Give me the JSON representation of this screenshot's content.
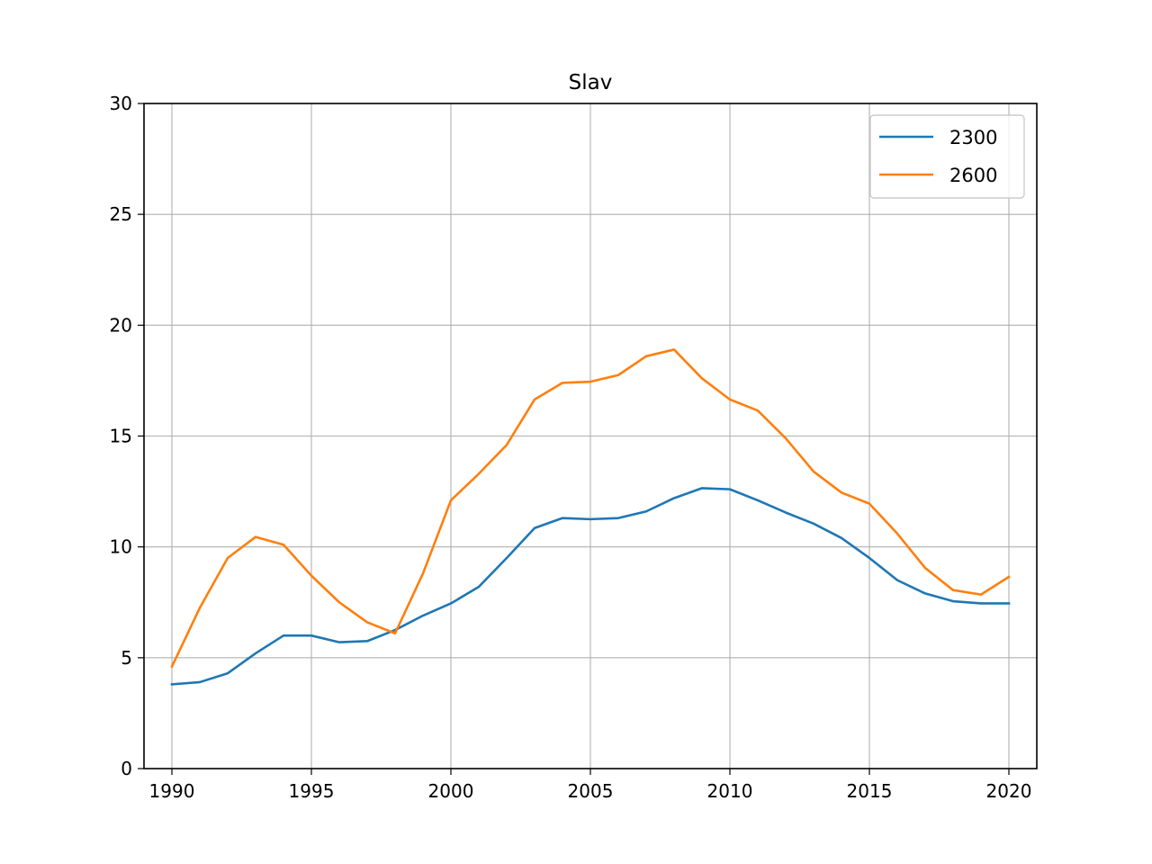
{
  "chart_data": {
    "type": "line",
    "title": "Slav",
    "xlabel": "",
    "ylabel": "",
    "xlim": [
      1989,
      2021
    ],
    "ylim": [
      0,
      30
    ],
    "xticks": [
      1990,
      1995,
      2000,
      2005,
      2010,
      2015,
      2020
    ],
    "yticks": [
      0,
      5,
      10,
      15,
      20,
      25,
      30
    ],
    "grid": true,
    "legend_position": "top-right",
    "x": [
      1990,
      1991,
      1992,
      1993,
      1994,
      1995,
      1996,
      1997,
      1998,
      1999,
      2000,
      2001,
      2002,
      2003,
      2004,
      2005,
      2006,
      2007,
      2008,
      2009,
      2010,
      2011,
      2012,
      2013,
      2014,
      2015,
      2016,
      2017,
      2018,
      2019,
      2020
    ],
    "series": [
      {
        "name": "2300",
        "color": "#1f77b4",
        "values": [
          3.8,
          3.9,
          4.3,
          5.2,
          6.0,
          6.0,
          5.7,
          5.75,
          6.25,
          6.9,
          7.45,
          8.2,
          9.5,
          10.85,
          11.3,
          11.25,
          11.3,
          11.6,
          12.2,
          12.65,
          12.6,
          12.1,
          11.55,
          11.05,
          10.4,
          9.5,
          8.5,
          7.9,
          7.55,
          7.45,
          7.45
        ]
      },
      {
        "name": "2600",
        "color": "#ff7f0e",
        "values": [
          4.6,
          7.25,
          9.5,
          10.45,
          10.1,
          8.7,
          7.5,
          6.6,
          6.1,
          8.8,
          12.1,
          13.3,
          14.6,
          16.65,
          17.4,
          17.45,
          17.75,
          18.6,
          18.9,
          17.6,
          16.65,
          16.15,
          14.9,
          13.4,
          12.45,
          11.95,
          10.6,
          9.05,
          8.05,
          7.85,
          8.65
        ]
      }
    ]
  }
}
